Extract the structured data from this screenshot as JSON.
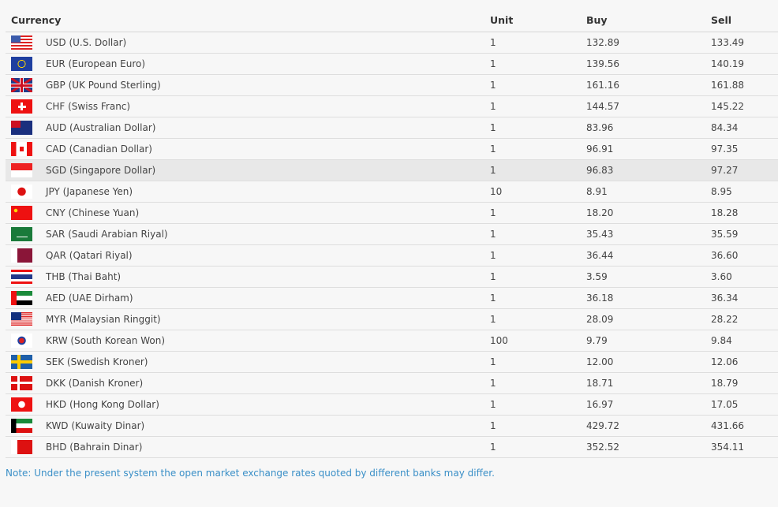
{
  "headers": {
    "currency": "Currency",
    "unit": "Unit",
    "buy": "Buy",
    "sell": "Sell"
  },
  "rows": [
    {
      "code": "USD",
      "flag": "us-flag-icon",
      "currency": "USD (U.S. Dollar)",
      "unit": "1",
      "buy": "132.89",
      "sell": "133.49"
    },
    {
      "code": "EUR",
      "flag": "eu-flag-icon",
      "currency": "EUR (European Euro)",
      "unit": "1",
      "buy": "139.56",
      "sell": "140.19"
    },
    {
      "code": "GBP",
      "flag": "uk-flag-icon",
      "currency": "GBP (UK Pound Sterling)",
      "unit": "1",
      "buy": "161.16",
      "sell": "161.88"
    },
    {
      "code": "CHF",
      "flag": "swiss-flag-icon",
      "currency": "CHF (Swiss Franc)",
      "unit": "1",
      "buy": "144.57",
      "sell": "145.22"
    },
    {
      "code": "AUD",
      "flag": "australia-flag-icon",
      "currency": "AUD (Australian Dollar)",
      "unit": "1",
      "buy": "83.96",
      "sell": "84.34"
    },
    {
      "code": "CAD",
      "flag": "canada-flag-icon",
      "currency": "CAD (Canadian Dollar)",
      "unit": "1",
      "buy": "96.91",
      "sell": "97.35"
    },
    {
      "code": "SGD",
      "flag": "singapore-flag-icon",
      "currency": "SGD (Singapore Dollar)",
      "unit": "1",
      "buy": "96.83",
      "sell": "97.27",
      "highlighted": true
    },
    {
      "code": "JPY",
      "flag": "japan-flag-icon",
      "currency": "JPY (Japanese Yen)",
      "unit": "10",
      "buy": "8.91",
      "sell": "8.95"
    },
    {
      "code": "CNY",
      "flag": "china-flag-icon",
      "currency": "CNY (Chinese Yuan)",
      "unit": "1",
      "buy": "18.20",
      "sell": "18.28"
    },
    {
      "code": "SAR",
      "flag": "saudi-flag-icon",
      "currency": "SAR (Saudi Arabian Riyal)",
      "unit": "1",
      "buy": "35.43",
      "sell": "35.59"
    },
    {
      "code": "QAR",
      "flag": "qatar-flag-icon",
      "currency": "QAR (Qatari Riyal)",
      "unit": "1",
      "buy": "36.44",
      "sell": "36.60"
    },
    {
      "code": "THB",
      "flag": "thailand-flag-icon",
      "currency": "THB (Thai Baht)",
      "unit": "1",
      "buy": "3.59",
      "sell": "3.60"
    },
    {
      "code": "AED",
      "flag": "uae-flag-icon",
      "currency": "AED (UAE Dirham)",
      "unit": "1",
      "buy": "36.18",
      "sell": "36.34"
    },
    {
      "code": "MYR",
      "flag": "malaysia-flag-icon",
      "currency": "MYR (Malaysian Ringgit)",
      "unit": "1",
      "buy": "28.09",
      "sell": "28.22"
    },
    {
      "code": "KRW",
      "flag": "korea-flag-icon",
      "currency": "KRW (South Korean Won)",
      "unit": "100",
      "buy": "9.79",
      "sell": "9.84"
    },
    {
      "code": "SEK",
      "flag": "sweden-flag-icon",
      "currency": "SEK (Swedish Kroner)",
      "unit": "1",
      "buy": "12.00",
      "sell": "12.06"
    },
    {
      "code": "DKK",
      "flag": "denmark-flag-icon",
      "currency": "DKK (Danish Kroner)",
      "unit": "1",
      "buy": "18.71",
      "sell": "18.79"
    },
    {
      "code": "HKD",
      "flag": "hongkong-flag-icon",
      "currency": "HKD (Hong Kong Dollar)",
      "unit": "1",
      "buy": "16.97",
      "sell": "17.05"
    },
    {
      "code": "KWD",
      "flag": "kuwait-flag-icon",
      "currency": "KWD (Kuwaity Dinar)",
      "unit": "1",
      "buy": "429.72",
      "sell": "431.66"
    },
    {
      "code": "BHD",
      "flag": "bahrain-flag-icon",
      "currency": "BHD (Bahrain Dinar)",
      "unit": "1",
      "buy": "352.52",
      "sell": "354.11"
    }
  ],
  "note": "Note: Under the present system the open market exchange rates quoted by different banks may differ."
}
